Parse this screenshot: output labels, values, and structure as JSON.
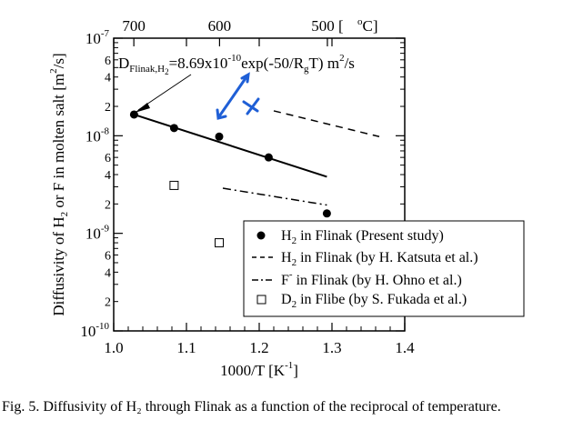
{
  "chart_data": {
    "type": "scatter",
    "xlabel": "1000/T [K",
    "xlabel_sup": "-1",
    "xlabel_close": "]",
    "ylabel": "Diffusivity of H",
    "ylabel_sub": "2",
    "ylabel_rest": " or F in molten salt [m",
    "ylabel_sup": "2",
    "ylabel_close": "/s]",
    "xlim": [
      1.0,
      1.4
    ],
    "ylim": [
      1e-10,
      1e-07
    ],
    "y_scale": "log",
    "grid": false,
    "x_ticks": [
      "1.0",
      "1.1",
      "1.2",
      "1.3",
      "1.4"
    ],
    "x_tick_values": [
      1.0,
      1.1,
      1.2,
      1.3,
      1.4
    ],
    "y_decade_ticks": [
      {
        "value": 1e-07,
        "base": "10",
        "exp": "-7"
      },
      {
        "value": 1e-08,
        "base": "10",
        "exp": "-8"
      },
      {
        "value": 1e-09,
        "base": "10",
        "exp": "-9"
      },
      {
        "value": 1e-10,
        "base": "10",
        "exp": "-10"
      }
    ],
    "y_minor_labels": [
      "2",
      "4",
      "6"
    ],
    "top_axis": {
      "ticks": [
        {
          "label": "700",
          "value": 1.0277
        },
        {
          "label": "600",
          "value": 1.1455
        },
        {
          "label": "500 [",
          "value": 1.2937
        }
      ],
      "unit": "°C]",
      "unit_sup": "o",
      "unit_label": "C]"
    },
    "annotation": {
      "d": "D",
      "sub": "Flinak,H",
      "sub2": "2",
      "eq": "=8.69x10",
      "sup": "-10",
      "rest": "exp(-50/R",
      "rsub": "g",
      "rest2": "T) m",
      "rsup": "2",
      "rest3": "/s"
    },
    "series": [
      {
        "name": "H",
        "name_sub": "2",
        "name_rest": " in Flinak (Present study)",
        "style": "filled-circle",
        "points": [
          [
            1.028,
            1.65e-08
          ],
          [
            1.083,
            1.2e-08
          ],
          [
            1.145,
            9.8e-09
          ],
          [
            1.213,
            6e-09
          ],
          [
            1.293,
            1.6e-09
          ]
        ]
      },
      {
        "name": "H",
        "name_sub": "2",
        "name_rest": " in Flinak (by H. Katsuta et al.)",
        "style": "dashed",
        "points": [
          [
            1.22,
            1.8e-08
          ],
          [
            1.365,
            9.8e-09
          ]
        ]
      },
      {
        "name": "F",
        "name_sup": "-",
        "name_rest": " in Flinak (by H. Ohno et al.)",
        "style": "dash-dot",
        "points": [
          [
            1.15,
            2.9e-09
          ],
          [
            1.293,
            1.95e-09
          ]
        ]
      },
      {
        "name": "D",
        "name_sub": "2",
        "name_rest": " in Flibe (by S. Fukada et al.)",
        "style": "open-square",
        "points": [
          [
            1.083,
            3.1e-09
          ],
          [
            1.145,
            8e-10
          ]
        ]
      }
    ],
    "fit_line": {
      "points": [
        [
          1.028,
          1.65e-08
        ],
        [
          1.293,
          3.8e-09
        ]
      ]
    },
    "legend_position": "bottom-right"
  },
  "caption": "Fig. 5. Diffusivity of H₂ through Flinak as a function of the reciprocal of temperature."
}
